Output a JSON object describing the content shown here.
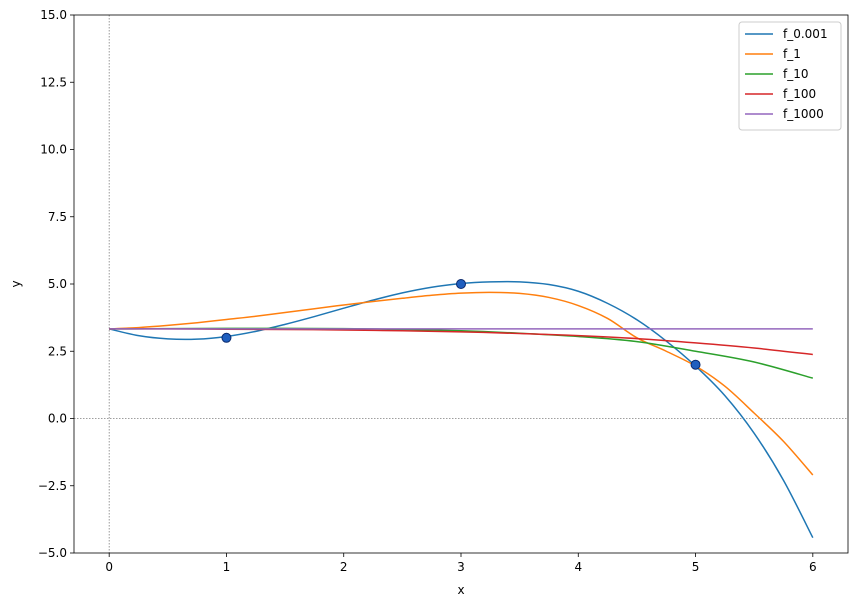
{
  "chart_data": {
    "type": "line",
    "title": "",
    "xlabel": "x",
    "ylabel": "y",
    "xlim": [
      -0.3,
      6.3
    ],
    "ylim": [
      -5.0,
      15.0
    ],
    "xticks": [
      0,
      1,
      2,
      3,
      4,
      5,
      6
    ],
    "xtick_labels": [
      "0",
      "1",
      "2",
      "3",
      "4",
      "5",
      "6"
    ],
    "yticks": [
      -5.0,
      -2.5,
      0.0,
      2.5,
      5.0,
      7.5,
      10.0,
      12.5,
      15.0
    ],
    "ytick_labels": [
      "−5.0",
      "−2.5",
      "0.0",
      "2.5",
      "5.0",
      "7.5",
      "10.0",
      "12.5",
      "15.0"
    ],
    "grid": false,
    "reference_lines": {
      "x": 0,
      "y": 0,
      "style": "dotted",
      "color": "#808080"
    },
    "legend_position": "top-right",
    "points": {
      "x": [
        1,
        3,
        5
      ],
      "y": [
        3,
        5,
        2
      ],
      "color": "#1f5fbf",
      "edge_color": "#0a2a6e"
    },
    "series": [
      {
        "name": "f_0.001",
        "color": "#1f77b4",
        "x": [
          0,
          0.25,
          0.5,
          0.75,
          1,
          1.25,
          1.5,
          1.75,
          2,
          2.25,
          2.5,
          2.75,
          3,
          3.25,
          3.5,
          3.75,
          4,
          4.25,
          4.5,
          4.75,
          5,
          5.25,
          5.5,
          5.75,
          6
        ],
        "y": [
          3.33,
          3.08,
          2.96,
          2.95,
          3.05,
          3.24,
          3.5,
          3.79,
          4.1,
          4.4,
          4.67,
          4.88,
          5.02,
          5.08,
          5.08,
          4.98,
          4.73,
          4.28,
          3.67,
          2.88,
          1.95,
          0.85,
          -0.55,
          -2.3,
          -4.43
        ]
      },
      {
        "name": "f_1",
        "color": "#ff7f0e",
        "x": [
          0,
          0.25,
          0.5,
          0.75,
          1,
          1.25,
          1.5,
          1.75,
          2,
          2.25,
          2.5,
          2.75,
          3,
          3.25,
          3.5,
          3.75,
          4,
          4.25,
          4.5,
          4.75,
          5,
          5.25,
          5.5,
          5.75,
          6
        ],
        "y": [
          3.33,
          3.38,
          3.46,
          3.56,
          3.68,
          3.8,
          3.94,
          4.08,
          4.22,
          4.35,
          4.47,
          4.58,
          4.66,
          4.69,
          4.65,
          4.5,
          4.2,
          3.72,
          3.0,
          2.5,
          1.95,
          1.2,
          0.2,
          -0.85,
          -2.1
        ]
      },
      {
        "name": "f_10",
        "color": "#2ca02c",
        "x": [
          0,
          0.5,
          1,
          1.5,
          2,
          2.5,
          3,
          3.5,
          4,
          4.5,
          5,
          5.5,
          6
        ],
        "y": [
          3.33,
          3.34,
          3.35,
          3.35,
          3.34,
          3.31,
          3.26,
          3.17,
          3.05,
          2.86,
          2.5,
          2.1,
          1.5
        ]
      },
      {
        "name": "f_100",
        "color": "#d62728",
        "x": [
          0,
          0.5,
          1,
          1.5,
          2,
          2.5,
          3,
          3.5,
          4,
          4.5,
          5,
          5.5,
          6
        ],
        "y": [
          3.33,
          3.33,
          3.32,
          3.31,
          3.29,
          3.26,
          3.22,
          3.16,
          3.08,
          2.97,
          2.81,
          2.62,
          2.38
        ]
      },
      {
        "name": "f_1000",
        "color": "#9467bd",
        "x": [
          0,
          1,
          2,
          3,
          4,
          5,
          6
        ],
        "y": [
          3.33,
          3.33,
          3.33,
          3.33,
          3.33,
          3.33,
          3.33
        ]
      }
    ]
  }
}
